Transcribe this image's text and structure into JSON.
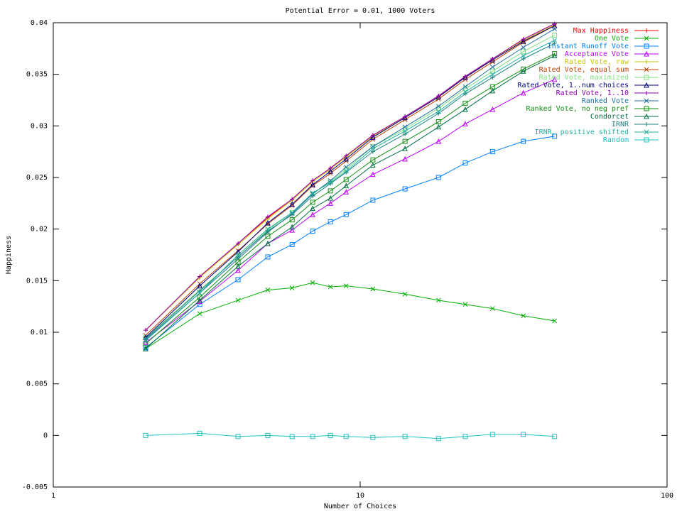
{
  "chart_data": {
    "type": "line",
    "title": "Potential Error = 0.01, 1000 Voters",
    "x_label": "Number of Choices",
    "y_label": "Happiness",
    "xscale": "log",
    "x": [
      2,
      3,
      4,
      5,
      6,
      7,
      8,
      9,
      11,
      14,
      18,
      22,
      27,
      34,
      43
    ],
    "xlim": [
      1,
      100
    ],
    "xticks": [
      1,
      10,
      100
    ],
    "ylim": [
      -0.005,
      0.04
    ],
    "yticks": [
      -0.005,
      0,
      0.005,
      0.01,
      0.015,
      0.02,
      0.025,
      0.03,
      0.035,
      0.04
    ],
    "legend": "top-right",
    "series": [
      {
        "name": "Max Happiness",
        "color": "#ff0000",
        "values": [
          0.0102,
          0.0154,
          0.0186,
          0.0211,
          0.0229,
          0.0247,
          0.0259,
          0.0271,
          0.0291,
          0.0309,
          0.0329,
          0.0348,
          0.0365,
          0.0384,
          0.0399
        ]
      },
      {
        "name": "One Vote",
        "color": "#00b000",
        "values": [
          0.0084,
          0.0118,
          0.0131,
          0.0141,
          0.0143,
          0.0148,
          0.0144,
          0.0145,
          0.0142,
          0.0137,
          0.0131,
          0.0127,
          0.0123,
          0.0116,
          0.0111
        ]
      },
      {
        "name": "Instant Runoff Vote",
        "color": "#0080ff",
        "values": [
          0.0085,
          0.0127,
          0.0151,
          0.0173,
          0.0185,
          0.0198,
          0.0207,
          0.0214,
          0.0228,
          0.0239,
          0.025,
          0.0264,
          0.0275,
          0.0285,
          0.029
        ]
      },
      {
        "name": "Acceptance Vote",
        "color": "#c000ff",
        "values": [
          0.009,
          0.013,
          0.016,
          0.0186,
          0.0199,
          0.0214,
          0.0225,
          0.0236,
          0.0253,
          0.0268,
          0.0285,
          0.0302,
          0.0316,
          0.0332,
          0.0345
        ]
      },
      {
        "name": "Rated Vote, raw",
        "color": "#c8c800",
        "values": [
          0.0102,
          0.0153,
          0.0185,
          0.021,
          0.0228,
          0.0246,
          0.0258,
          0.027,
          0.029,
          0.0308,
          0.0328,
          0.0347,
          0.0364,
          0.0383,
          0.0398
        ]
      },
      {
        "name": "Rated Vote, equal sum",
        "color": "#c04000",
        "values": [
          0.0097,
          0.0147,
          0.0179,
          0.0205,
          0.0223,
          0.0242,
          0.0254,
          0.0266,
          0.0287,
          0.0306,
          0.0326,
          0.0345,
          0.0362,
          0.0381,
          0.0397
        ]
      },
      {
        "name": "Rated Vote, maximized",
        "color": "#80e080",
        "values": [
          0.0095,
          0.0141,
          0.0173,
          0.0199,
          0.0216,
          0.0234,
          0.0246,
          0.0258,
          0.028,
          0.0297,
          0.0317,
          0.0336,
          0.0353,
          0.0372,
          0.0388
        ]
      },
      {
        "name": "Rated Vote, 1..num choices",
        "color": "#000080",
        "values": [
          0.0095,
          0.0145,
          0.0178,
          0.0206,
          0.0224,
          0.0243,
          0.0256,
          0.0268,
          0.0289,
          0.0308,
          0.0328,
          0.0347,
          0.0364,
          0.0382,
          0.0397
        ]
      },
      {
        "name": "Rated Vote, 1..10",
        "color": "#9000b0",
        "values": [
          0.0102,
          0.0154,
          0.0186,
          0.0212,
          0.0229,
          0.0247,
          0.0259,
          0.0271,
          0.0291,
          0.0309,
          0.0329,
          0.0348,
          0.0365,
          0.0384,
          0.0399
        ]
      },
      {
        "name": "Ranked Vote",
        "color": "#2070a0",
        "values": [
          0.0093,
          0.0138,
          0.0171,
          0.0197,
          0.0215,
          0.0234,
          0.0247,
          0.026,
          0.028,
          0.0299,
          0.0319,
          0.0338,
          0.0357,
          0.0376,
          0.0394
        ]
      },
      {
        "name": "Ranked Vote, no neg pref",
        "color": "#109010",
        "values": [
          0.0089,
          0.0134,
          0.0168,
          0.0193,
          0.0209,
          0.0226,
          0.0237,
          0.0248,
          0.0267,
          0.0285,
          0.0304,
          0.0322,
          0.0338,
          0.0355,
          0.037
        ]
      },
      {
        "name": "Condorcet",
        "color": "#007040",
        "values": [
          0.0084,
          0.0131,
          0.0164,
          0.0186,
          0.0202,
          0.022,
          0.023,
          0.0242,
          0.0262,
          0.0278,
          0.0299,
          0.0316,
          0.0334,
          0.0353,
          0.0368
        ]
      },
      {
        "name": "IRNR",
        "color": "#208080",
        "values": [
          0.0094,
          0.014,
          0.0173,
          0.0198,
          0.0214,
          0.0232,
          0.0244,
          0.0255,
          0.0275,
          0.0292,
          0.0312,
          0.0331,
          0.0347,
          0.0365,
          0.038
        ]
      },
      {
        "name": "IRNR, positive shifted",
        "color": "#20b0a0",
        "values": [
          0.0092,
          0.0138,
          0.0175,
          0.02,
          0.0216,
          0.0235,
          0.0245,
          0.0256,
          0.0278,
          0.0295,
          0.0314,
          0.0333,
          0.035,
          0.0368,
          0.0383
        ]
      },
      {
        "name": "Random",
        "color": "#20c0c0",
        "values": [
          0,
          0.0002,
          -0.0001,
          0,
          -0.0001,
          -0.0001,
          0,
          -0.0001,
          -0.0002,
          -0.0001,
          -0.0003,
          -0.0001,
          0.0001,
          0.0001,
          -0.0001
        ]
      }
    ]
  }
}
